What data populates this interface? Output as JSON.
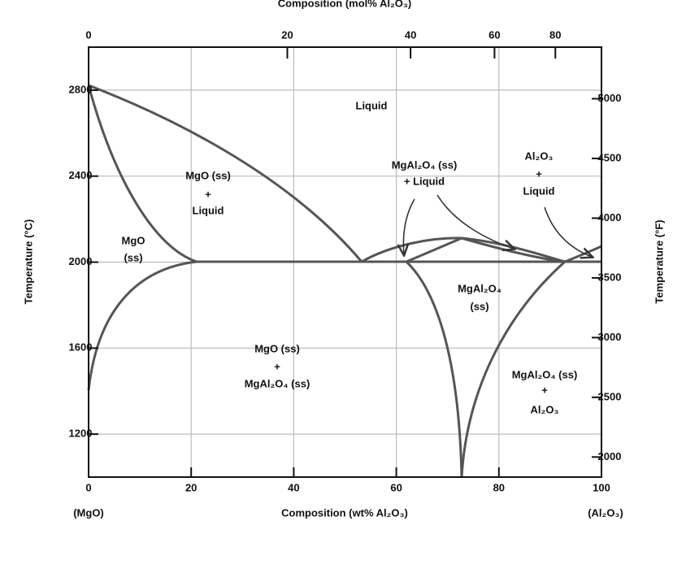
{
  "top_axis": {
    "label": "Composition (mol% Al₂O₃)",
    "ticks": [
      0,
      20,
      40,
      60,
      80
    ]
  },
  "bottom_axis": {
    "label": "Composition (wt% Al₂O₃)",
    "left_end": "(MgO)",
    "right_end": "(Al₂O₃)",
    "lim": [
      0,
      100
    ],
    "ticks": [
      0,
      20,
      40,
      60,
      80,
      100
    ]
  },
  "left_axis": {
    "label": "Temperature (°C)",
    "lim": [
      1000,
      3000
    ],
    "ticks": [
      1200,
      1600,
      2000,
      2400,
      2800
    ]
  },
  "right_axis": {
    "label": "Temperature (°F)",
    "lim": [
      1832,
      5432
    ],
    "ticks": [
      2000,
      2500,
      3000,
      3500,
      4000,
      4500,
      5000
    ]
  },
  "regions": [
    {
      "lines": [
        "Liquid"
      ]
    },
    {
      "lines": [
        "MgO (ss)",
        "+",
        "Liquid"
      ]
    },
    {
      "lines": [
        "MgO",
        "(ss)"
      ]
    },
    {
      "lines": [
        "MgAl₂O₄ (ss)",
        "+ Liquid"
      ]
    },
    {
      "lines": [
        "Al₂O₃",
        "+",
        "Liquid"
      ]
    },
    {
      "lines": [
        "MgAl₂O₄",
        "(ss)"
      ]
    },
    {
      "lines": [
        "MgO (ss)",
        "+",
        "MgAl₂O₄ (ss)"
      ]
    },
    {
      "lines": [
        "MgAl₂O₄ (ss)",
        "+",
        "Al₂O₃"
      ]
    }
  ]
}
